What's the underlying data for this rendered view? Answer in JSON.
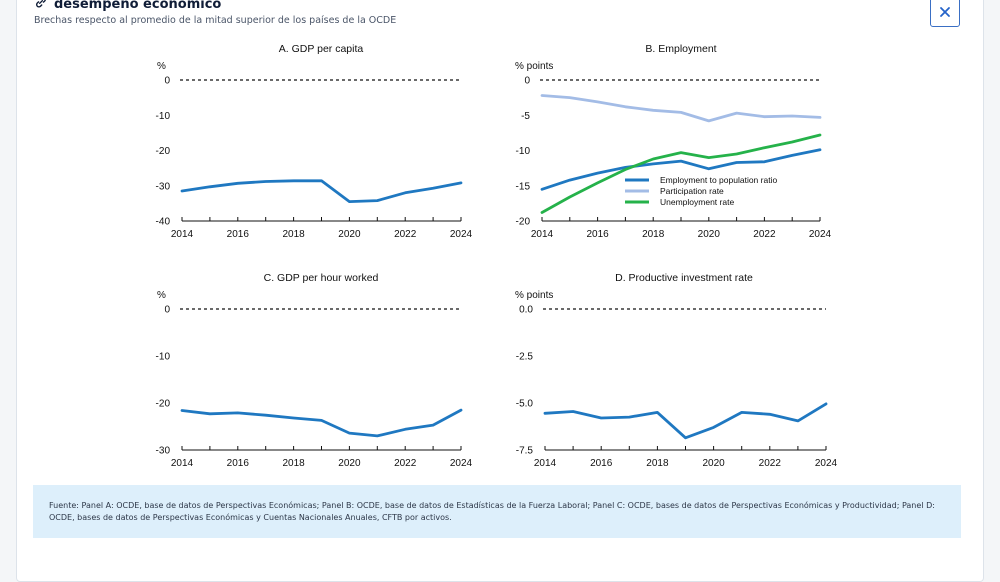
{
  "header": {
    "title": "desempeño económico",
    "subtitle": "Brechas respecto al promedio de la mitad superior de los países de la OCDE",
    "close_icon": "close-icon",
    "link_icon": "link-icon"
  },
  "footnote": "Fuente: Panel A: OCDE, base de datos de Perspectivas Económicas; Panel B: OCDE, base de datos de Estadísticas de la Fuerza Laboral; Panel C: OCDE, bases de datos de Perspectivas Económicas y Productividad; Panel D: OCDE, bases de datos de Perspectivas Económicas y Cuentas Nacionales Anuales, CFTB por activos.",
  "chart_data": [
    {
      "type": "line",
      "title": "A. GDP per capita",
      "ylabel": "%",
      "ylim": [
        -40,
        0
      ],
      "yticks": [
        0,
        -10,
        -20,
        -30,
        -40
      ],
      "xlim": [
        2014,
        2024
      ],
      "xticks": [
        2014,
        2016,
        2018,
        2020,
        2022,
        2024
      ],
      "zero_line": true,
      "series": [
        {
          "color": "#1f78c1",
          "x": [
            2014,
            2015,
            2016,
            2017,
            2018,
            2019,
            2020,
            2021,
            2022,
            2023,
            2024
          ],
          "values": [
            -31.5,
            -30.3,
            -29.3,
            -28.8,
            -28.6,
            -28.6,
            -34.5,
            -34.2,
            -32.0,
            -30.7,
            -29.2
          ]
        }
      ]
    },
    {
      "type": "line",
      "title": "B. Employment",
      "ylabel": "% points",
      "ylim": [
        -20,
        0
      ],
      "yticks": [
        0,
        -5,
        -10,
        -15,
        -20
      ],
      "xlim": [
        2014,
        2024
      ],
      "xticks": [
        2014,
        2016,
        2018,
        2020,
        2022,
        2024
      ],
      "zero_line": true,
      "legend": "bottom-right",
      "series": [
        {
          "name": "Employment to population ratio",
          "color": "#1f78c1",
          "x": [
            2014,
            2015,
            2016,
            2017,
            2018,
            2019,
            2020,
            2021,
            2022,
            2023,
            2024
          ],
          "values": [
            -15.5,
            -14.2,
            -13.2,
            -12.4,
            -11.9,
            -11.5,
            -12.6,
            -11.7,
            -11.6,
            -10.7,
            -9.9
          ]
        },
        {
          "name": "Participation rate",
          "color": "#a3bce6",
          "x": [
            2014,
            2015,
            2016,
            2017,
            2018,
            2019,
            2020,
            2021,
            2022,
            2023,
            2024
          ],
          "values": [
            -2.2,
            -2.5,
            -3.1,
            -3.8,
            -4.3,
            -4.6,
            -5.8,
            -4.7,
            -5.2,
            -5.1,
            -5.3
          ]
        },
        {
          "name": "Unemployment rate",
          "color": "#25b24a",
          "x": [
            2014,
            2015,
            2016,
            2017,
            2018,
            2019,
            2020,
            2021,
            2022,
            2023,
            2024
          ],
          "values": [
            -18.8,
            -16.6,
            -14.6,
            -12.7,
            -11.2,
            -10.3,
            -11.0,
            -10.5,
            -9.6,
            -8.8,
            -7.8
          ]
        }
      ]
    },
    {
      "type": "line",
      "title": "C. GDP per hour worked",
      "ylabel": "%",
      "ylim": [
        -30,
        0
      ],
      "yticks": [
        0,
        -10,
        -20,
        -30
      ],
      "xlim": [
        2014,
        2024
      ],
      "xticks": [
        2014,
        2016,
        2018,
        2020,
        2022,
        2024
      ],
      "zero_line": true,
      "series": [
        {
          "color": "#1f78c1",
          "x": [
            2014,
            2015,
            2016,
            2017,
            2018,
            2019,
            2020,
            2021,
            2022,
            2023,
            2024
          ],
          "values": [
            -21.6,
            -22.3,
            -22.1,
            -22.6,
            -23.2,
            -23.7,
            -26.4,
            -27.0,
            -25.6,
            -24.7,
            -21.5
          ]
        }
      ]
    },
    {
      "type": "line",
      "title": "D. Productive investment rate",
      "ylabel": "% points",
      "ylim": [
        -7.5,
        0
      ],
      "yticks": [
        0,
        -2.5,
        -5,
        -7.5
      ],
      "ytick_labels": [
        "0.0",
        "-2.5",
        "-5.0",
        "-7.5"
      ],
      "xlim": [
        2014,
        2024
      ],
      "xticks": [
        2014,
        2016,
        2018,
        2020,
        2022,
        2024
      ],
      "zero_line": true,
      "series": [
        {
          "color": "#1f78c1",
          "x": [
            2014,
            2015,
            2016,
            2017,
            2018,
            2019,
            2020,
            2021,
            2022,
            2023,
            2024
          ],
          "values": [
            -5.55,
            -5.45,
            -5.8,
            -5.75,
            -5.5,
            -6.85,
            -6.3,
            -5.5,
            -5.6,
            -5.95,
            -5.05
          ]
        }
      ]
    }
  ]
}
